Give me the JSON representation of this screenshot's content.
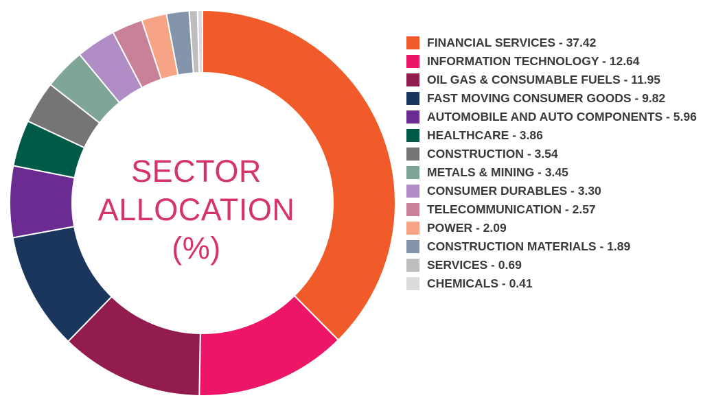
{
  "chart_data": {
    "type": "pie",
    "donut": true,
    "title_lines": [
      "SECTOR",
      "ALLOCATION",
      "(%)"
    ],
    "legend_position": "right",
    "slices": [
      {
        "label": "FINANCIAL SERVICES - 37.42",
        "value": 37.42,
        "color": "#f15a29"
      },
      {
        "label": "INFORMATION TECHNOLOGY - 12.64",
        "value": 12.64,
        "color": "#ec1566"
      },
      {
        "label": "OIL GAS & CONSUMABLE FUELS - 11.95",
        "value": 11.95,
        "color": "#931c4f"
      },
      {
        "label": "FAST MOVING CONSUMER GOODS - 9.82",
        "value": 9.82,
        "color": "#1b365d"
      },
      {
        "label": "AUTOMOBILE AND AUTO COMPONENTS - 5.96",
        "value": 5.96,
        "color": "#6a2c91"
      },
      {
        "label": "HEALTHCARE - 3.86",
        "value": 3.86,
        "color": "#005a48"
      },
      {
        "label": "CONSTRUCTION - 3.54",
        "value": 3.54,
        "color": "#757575"
      },
      {
        "label": "METALS & MINING - 3.45",
        "value": 3.45,
        "color": "#7ea596"
      },
      {
        "label": "CONSUMER DURABLES - 3.30",
        "value": 3.3,
        "color": "#b08dc4"
      },
      {
        "label": "TELECOMMUNICATION - 2.57",
        "value": 2.57,
        "color": "#c98198"
      },
      {
        "label": "POWER - 2.09",
        "value": 2.09,
        "color": "#f7a386"
      },
      {
        "label": "CONSTRUCTION MATERIALS - 1.89",
        "value": 1.89,
        "color": "#8494aa"
      },
      {
        "label": "SERVICES - 0.69",
        "value": 0.69,
        "color": "#bdbdbd"
      },
      {
        "label": "CHEMICALS - 0.41",
        "value": 0.41,
        "color": "#dcdcdc"
      }
    ]
  }
}
